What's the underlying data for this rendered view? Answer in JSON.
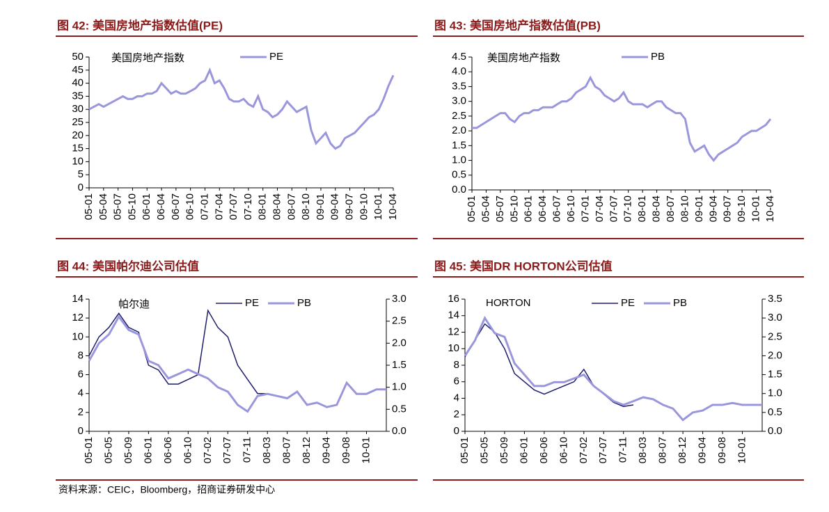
{
  "chart_data": [
    {
      "type": "line",
      "title": "图 42: 美国房地产指数估值(PE)",
      "annotation": "美国房地产指数",
      "categories": [
        "05-01",
        null,
        null,
        "05-04",
        null,
        null,
        "05-07",
        null,
        null,
        "05-10",
        null,
        null,
        "06-01",
        null,
        null,
        "06-04",
        null,
        null,
        "06-07",
        null,
        null,
        "06-10",
        null,
        null,
        "07-01",
        null,
        null,
        "07-04",
        null,
        null,
        "07-07",
        null,
        null,
        "07-10",
        null,
        null,
        "08-01",
        null,
        null,
        "08-04",
        null,
        null,
        "08-07",
        null,
        null,
        "08-10",
        null,
        null,
        "09-01",
        null,
        null,
        "09-04",
        null,
        null,
        "09-07",
        null,
        null,
        "09-10",
        null,
        null,
        "10-01",
        null,
        null,
        "10-04"
      ],
      "series": [
        {
          "name": "PE",
          "color": "#9a96dc",
          "values": [
            30,
            31,
            32,
            31,
            32,
            33,
            34,
            35,
            34,
            34,
            35,
            35,
            36,
            36,
            37,
            40,
            38,
            36,
            37,
            36,
            36,
            37,
            38,
            40,
            41,
            45,
            40,
            41,
            38,
            34,
            33,
            33,
            34,
            32,
            31,
            35,
            30,
            29,
            27,
            28,
            30,
            33,
            31,
            29,
            30,
            31,
            22,
            17,
            19,
            21,
            17,
            15,
            16,
            19,
            20,
            21,
            23,
            25,
            27,
            28,
            30,
            34,
            39,
            43
          ]
        }
      ],
      "ylim": [
        0,
        50
      ],
      "yticks": [
        0,
        5,
        10,
        15,
        20,
        25,
        30,
        35,
        40,
        45,
        50
      ]
    },
    {
      "type": "line",
      "title": "图 43: 美国房地产指数估值(PB)",
      "annotation": "美国房地产指数",
      "categories": [
        "05-01",
        null,
        null,
        "05-04",
        null,
        null,
        "05-07",
        null,
        null,
        "05-10",
        null,
        null,
        "06-01",
        null,
        null,
        "06-04",
        null,
        null,
        "06-07",
        null,
        null,
        "06-10",
        null,
        null,
        "07-01",
        null,
        null,
        "07-04",
        null,
        null,
        "07-07",
        null,
        null,
        "07-10",
        null,
        null,
        "08-01",
        null,
        null,
        "08-04",
        null,
        null,
        "08-07",
        null,
        null,
        "08-10",
        null,
        null,
        "09-01",
        null,
        null,
        "09-04",
        null,
        null,
        "09-07",
        null,
        null,
        "09-10",
        null,
        null,
        "10-01",
        null,
        null,
        "10-04"
      ],
      "series": [
        {
          "name": "PB",
          "color": "#9a96dc",
          "values": [
            2.1,
            2.1,
            2.2,
            2.3,
            2.4,
            2.5,
            2.6,
            2.6,
            2.4,
            2.3,
            2.5,
            2.6,
            2.6,
            2.7,
            2.7,
            2.8,
            2.8,
            2.8,
            2.9,
            3.0,
            3.0,
            3.1,
            3.3,
            3.4,
            3.5,
            3.8,
            3.5,
            3.4,
            3.2,
            3.1,
            3.0,
            3.1,
            3.3,
            3.0,
            2.9,
            2.9,
            2.9,
            2.8,
            2.9,
            3.0,
            3.0,
            2.8,
            2.7,
            2.6,
            2.6,
            2.4,
            1.6,
            1.3,
            1.4,
            1.5,
            1.2,
            1.0,
            1.2,
            1.3,
            1.4,
            1.5,
            1.6,
            1.8,
            1.9,
            2.0,
            2.0,
            2.1,
            2.2,
            2.4
          ]
        }
      ],
      "ylim": [
        0,
        4.5
      ],
      "yticks": [
        {
          "value": 0,
          "label": "0.0"
        },
        0.5,
        {
          "value": 1,
          "label": "1.0"
        },
        1.5,
        {
          "value": 2,
          "label": "2.0"
        },
        2.5,
        {
          "value": 3,
          "label": "3.0"
        },
        3.5,
        {
          "value": 4,
          "label": "4.0"
        },
        4.5
      ]
    },
    {
      "type": "line",
      "title": "图 44: 美国帕尔迪公司估值",
      "annotation": "帕尔迪",
      "categories": [
        "05-01",
        null,
        "05-05",
        null,
        "05-09",
        null,
        "06-01",
        null,
        "06-06",
        null,
        "06-10",
        null,
        "07-02",
        null,
        "07-07",
        null,
        "07-11",
        null,
        "08-03",
        null,
        "08-07",
        null,
        "08-12",
        null,
        "09-04",
        null,
        "09-08",
        null,
        "10-01",
        null,
        null
      ],
      "series": [
        {
          "name": "PE",
          "color": "#1c1c6b",
          "values": [
            8,
            10,
            11,
            12.5,
            11,
            10.5,
            7,
            6.5,
            5,
            5,
            5.5,
            6,
            12.8,
            11,
            10,
            7,
            5.5,
            4,
            4,
            null,
            null,
            null,
            null,
            null,
            null,
            null,
            null,
            null,
            null,
            null,
            null
          ]
        },
        {
          "name": "PB",
          "color": "#9a96dc",
          "axis": "y2",
          "values": [
            1.6,
            2.0,
            2.2,
            2.6,
            2.3,
            2.2,
            1.6,
            1.5,
            1.2,
            1.3,
            1.4,
            1.3,
            1.2,
            1.0,
            0.9,
            0.6,
            0.45,
            0.8,
            0.85,
            0.8,
            0.75,
            0.9,
            0.6,
            0.65,
            0.55,
            0.6,
            1.1,
            0.85,
            0.85,
            0.95,
            0.95
          ]
        }
      ],
      "ylim": [
        0,
        14
      ],
      "yticks": [
        0,
        2,
        4,
        6,
        8,
        10,
        12,
        14
      ],
      "y2lim": [
        0,
        3
      ],
      "y2ticks": [
        {
          "value": 0,
          "label": "0.0"
        },
        0.5,
        {
          "value": 1,
          "label": "1.0"
        },
        1.5,
        {
          "value": 2,
          "label": "2.0"
        },
        2.5,
        {
          "value": 3,
          "label": "3.0"
        }
      ]
    },
    {
      "type": "line",
      "title": "图 45: 美国DR HORTON公司估值",
      "annotation": "HORTON",
      "categories": [
        "05-01",
        null,
        "05-05",
        null,
        "05-09",
        null,
        "06-01",
        null,
        "06-06",
        null,
        "06-10",
        null,
        "07-02",
        null,
        "07-07",
        null,
        "07-11",
        null,
        "08-03",
        null,
        "08-07",
        null,
        "08-12",
        null,
        "09-04",
        null,
        "09-08",
        null,
        "10-01",
        null,
        null
      ],
      "series": [
        {
          "name": "PE",
          "color": "#1c1c6b",
          "values": [
            9,
            11,
            13,
            12,
            10,
            7,
            6,
            5,
            4.5,
            5,
            5.5,
            6,
            7.5,
            5.5,
            4.5,
            3.5,
            3,
            3.2,
            null,
            null,
            null,
            null,
            null,
            null,
            null,
            null,
            null,
            null,
            null,
            null,
            null
          ]
        },
        {
          "name": "PB",
          "color": "#9a96dc",
          "axis": "y2",
          "values": [
            2.0,
            2.4,
            3.0,
            2.6,
            2.5,
            1.8,
            1.5,
            1.2,
            1.2,
            1.3,
            1.3,
            1.4,
            1.5,
            1.2,
            1.0,
            0.8,
            0.7,
            0.8,
            0.9,
            0.85,
            0.7,
            0.6,
            0.3,
            0.5,
            0.55,
            0.7,
            0.7,
            0.75,
            0.7,
            0.7,
            0.7
          ]
        }
      ],
      "ylim": [
        0,
        16
      ],
      "yticks": [
        0,
        2,
        4,
        6,
        8,
        10,
        12,
        14,
        16
      ],
      "y2lim": [
        0,
        3.5
      ],
      "y2ticks": [
        {
          "value": 0,
          "label": "0.0"
        },
        0.5,
        {
          "value": 1,
          "label": "1.0"
        },
        1.5,
        {
          "value": 2,
          "label": "2.0"
        },
        2.5,
        {
          "value": 3,
          "label": "3.0"
        },
        3.5
      ]
    }
  ],
  "source": "资料来源：CEIC，Bloomberg，招商证券研发中心"
}
